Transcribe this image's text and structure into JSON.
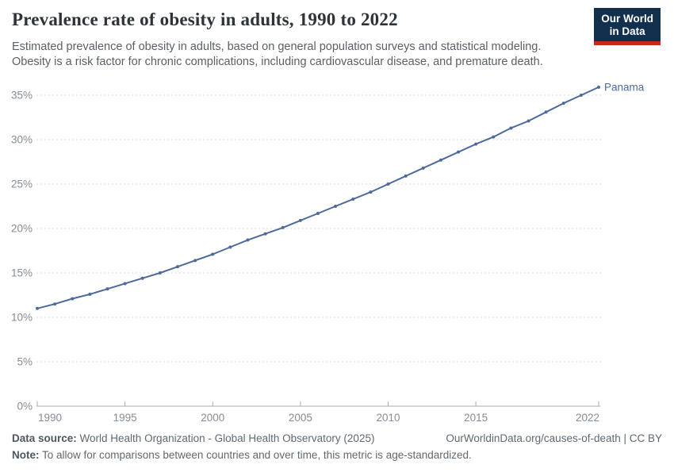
{
  "header": {
    "title": "Prevalence rate of obesity in adults, 1990 to 2022",
    "subtitle_lines": [
      "Estimated prevalence of obesity in adults, based on general population surveys and statistical modeling.",
      "Obesity is a risk factor for chronic complications, including cardiovascular disease, and premature death."
    ]
  },
  "logo": {
    "line1": "Our World",
    "line2": "in Data"
  },
  "footer": {
    "data_source_label": "Data source:",
    "data_source_value": " World Health Organization - Global Health Observatory (2025)",
    "link": "OurWorldinData.org/causes-of-death | CC BY",
    "note_label": "Note:",
    "note_value": " To allow for comparisons between countries and over time, this metric is age-standardized."
  },
  "chart_data": {
    "type": "line",
    "title": "Prevalence rate of obesity in adults, 1990 to 2022",
    "xlabel": "",
    "ylabel": "",
    "x": [
      1990,
      1991,
      1992,
      1993,
      1994,
      1995,
      1996,
      1997,
      1998,
      1999,
      2000,
      2001,
      2002,
      2003,
      2004,
      2005,
      2006,
      2007,
      2008,
      2009,
      2010,
      2011,
      2012,
      2013,
      2014,
      2015,
      2016,
      2017,
      2018,
      2019,
      2020,
      2021,
      2022
    ],
    "series": [
      {
        "name": "Panama",
        "color": "#4C6A9C",
        "values": [
          11.0,
          11.5,
          12.1,
          12.6,
          13.2,
          13.8,
          14.4,
          15.0,
          15.7,
          16.4,
          17.1,
          17.9,
          18.7,
          19.4,
          20.1,
          20.9,
          21.7,
          22.5,
          23.3,
          24.1,
          25.0,
          25.9,
          26.8,
          27.7,
          28.6,
          29.5,
          30.3,
          31.3,
          32.1,
          33.1,
          34.1,
          35.0,
          35.9
        ]
      }
    ],
    "ylim": [
      0,
      36.5
    ],
    "yticks": [
      0,
      5,
      10,
      15,
      20,
      25,
      30,
      35
    ],
    "ytick_format": "{v}%",
    "xticks": [
      1990,
      1995,
      2000,
      2005,
      2010,
      2015,
      2022
    ],
    "grid": "dashed horizontal",
    "legend_position": "end-of-line-label",
    "colors": {
      "line": "#4C6A9C",
      "gridline": "#dcdcdc",
      "axis": "#a5adb3",
      "tick_label": "#858c94",
      "entity_label": "#4C6A9C"
    }
  }
}
